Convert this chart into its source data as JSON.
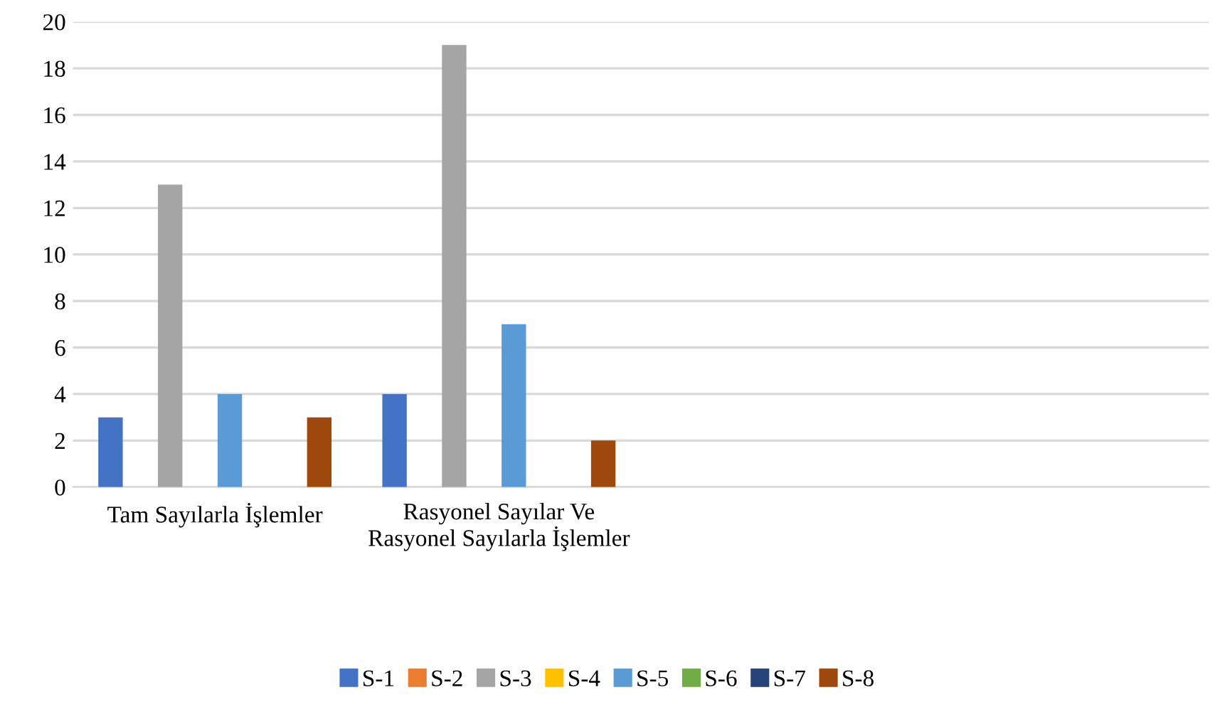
{
  "chart_data": {
    "type": "bar",
    "categories": [
      "Tam Sayılarla İşlemler",
      "Rasyonel Sayılar Ve Rasyonel Sayılarla İşlemler",
      null,
      null
    ],
    "series": [
      {
        "name": "S-1",
        "color": "#4472c4",
        "values": [
          3,
          4,
          null,
          null
        ]
      },
      {
        "name": "S-2",
        "color": "#ed7d31",
        "values": [
          0,
          0,
          null,
          null
        ]
      },
      {
        "name": "S-3",
        "color": "#a5a5a5",
        "values": [
          13,
          19,
          null,
          null
        ]
      },
      {
        "name": "S-4",
        "color": "#ffc000",
        "values": [
          0,
          0,
          null,
          null
        ]
      },
      {
        "name": "S-5",
        "color": "#5b9bd5",
        "values": [
          4,
          7,
          null,
          null
        ]
      },
      {
        "name": "S-6",
        "color": "#70ad47",
        "values": [
          0,
          0,
          null,
          null
        ]
      },
      {
        "name": "S-7",
        "color": "#264478",
        "values": [
          0,
          0,
          null,
          null
        ]
      },
      {
        "name": "S-8",
        "color": "#9e480e",
        "values": [
          3,
          2,
          null,
          null
        ]
      }
    ],
    "ylim": [
      0,
      20
    ],
    "yticks": [
      0,
      2,
      4,
      6,
      8,
      10,
      12,
      14,
      16,
      18,
      20
    ],
    "grid": "y",
    "legend": "bottom"
  }
}
